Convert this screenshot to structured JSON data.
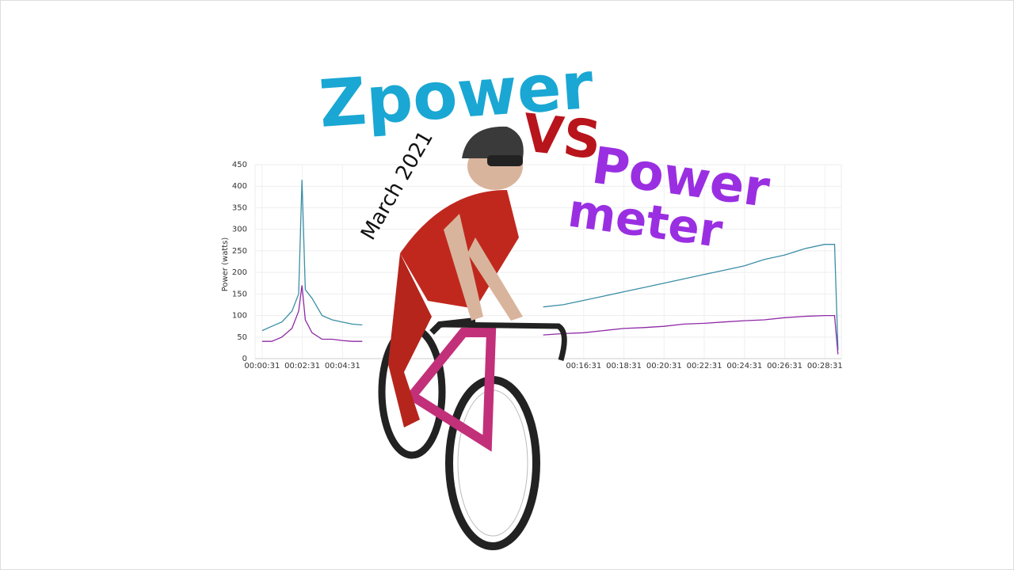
{
  "headline": {
    "word1": "Zpower",
    "word2": "vs",
    "word3": "Power",
    "word4": "meter"
  },
  "date": "March 2021",
  "chart_data": {
    "type": "line",
    "y_label": "Power (watts)",
    "x": [
      31,
      60,
      90,
      120,
      140,
      150,
      160,
      180,
      210,
      240,
      270,
      300,
      330,
      600,
      870,
      930,
      990,
      1050,
      1110,
      1170,
      1230,
      1290,
      1350,
      1410,
      1470,
      1530,
      1590,
      1650,
      1710,
      1740,
      1750
    ],
    "series": [
      {
        "color": "#3b8ea5",
        "values": [
          65,
          75,
          85,
          110,
          150,
          415,
          160,
          140,
          100,
          90,
          85,
          80,
          78,
          null,
          120,
          125,
          135,
          145,
          155,
          165,
          175,
          185,
          195,
          205,
          215,
          230,
          240,
          255,
          265,
          265,
          20
        ]
      },
      {
        "color": "#8e2aa6",
        "values": [
          40,
          40,
          50,
          70,
          110,
          170,
          90,
          60,
          45,
          45,
          42,
          40,
          40,
          null,
          55,
          58,
          60,
          65,
          70,
          72,
          75,
          80,
          82,
          85,
          88,
          90,
          95,
          98,
          100,
          100,
          10
        ]
      }
    ],
    "xlim": [
      10,
      1760
    ],
    "ylim": [
      0,
      450
    ],
    "yticks": [
      0,
      50,
      100,
      150,
      200,
      250,
      300,
      350,
      400,
      450
    ],
    "xticks": [
      {
        "value": 31,
        "label": "00:00:31"
      },
      {
        "value": 151,
        "label": "00:02:31"
      },
      {
        "value": 271,
        "label": "00:04:31"
      },
      {
        "value": 991,
        "label": "00:16:31"
      },
      {
        "value": 1111,
        "label": "00:18:31"
      },
      {
        "value": 1231,
        "label": "00:20:31"
      },
      {
        "value": 1351,
        "label": "00:22:31"
      },
      {
        "value": 1471,
        "label": "00:24:31"
      },
      {
        "value": 1591,
        "label": "00:26:31"
      },
      {
        "value": 1711,
        "label": "00:28:31"
      }
    ],
    "grid": true
  }
}
